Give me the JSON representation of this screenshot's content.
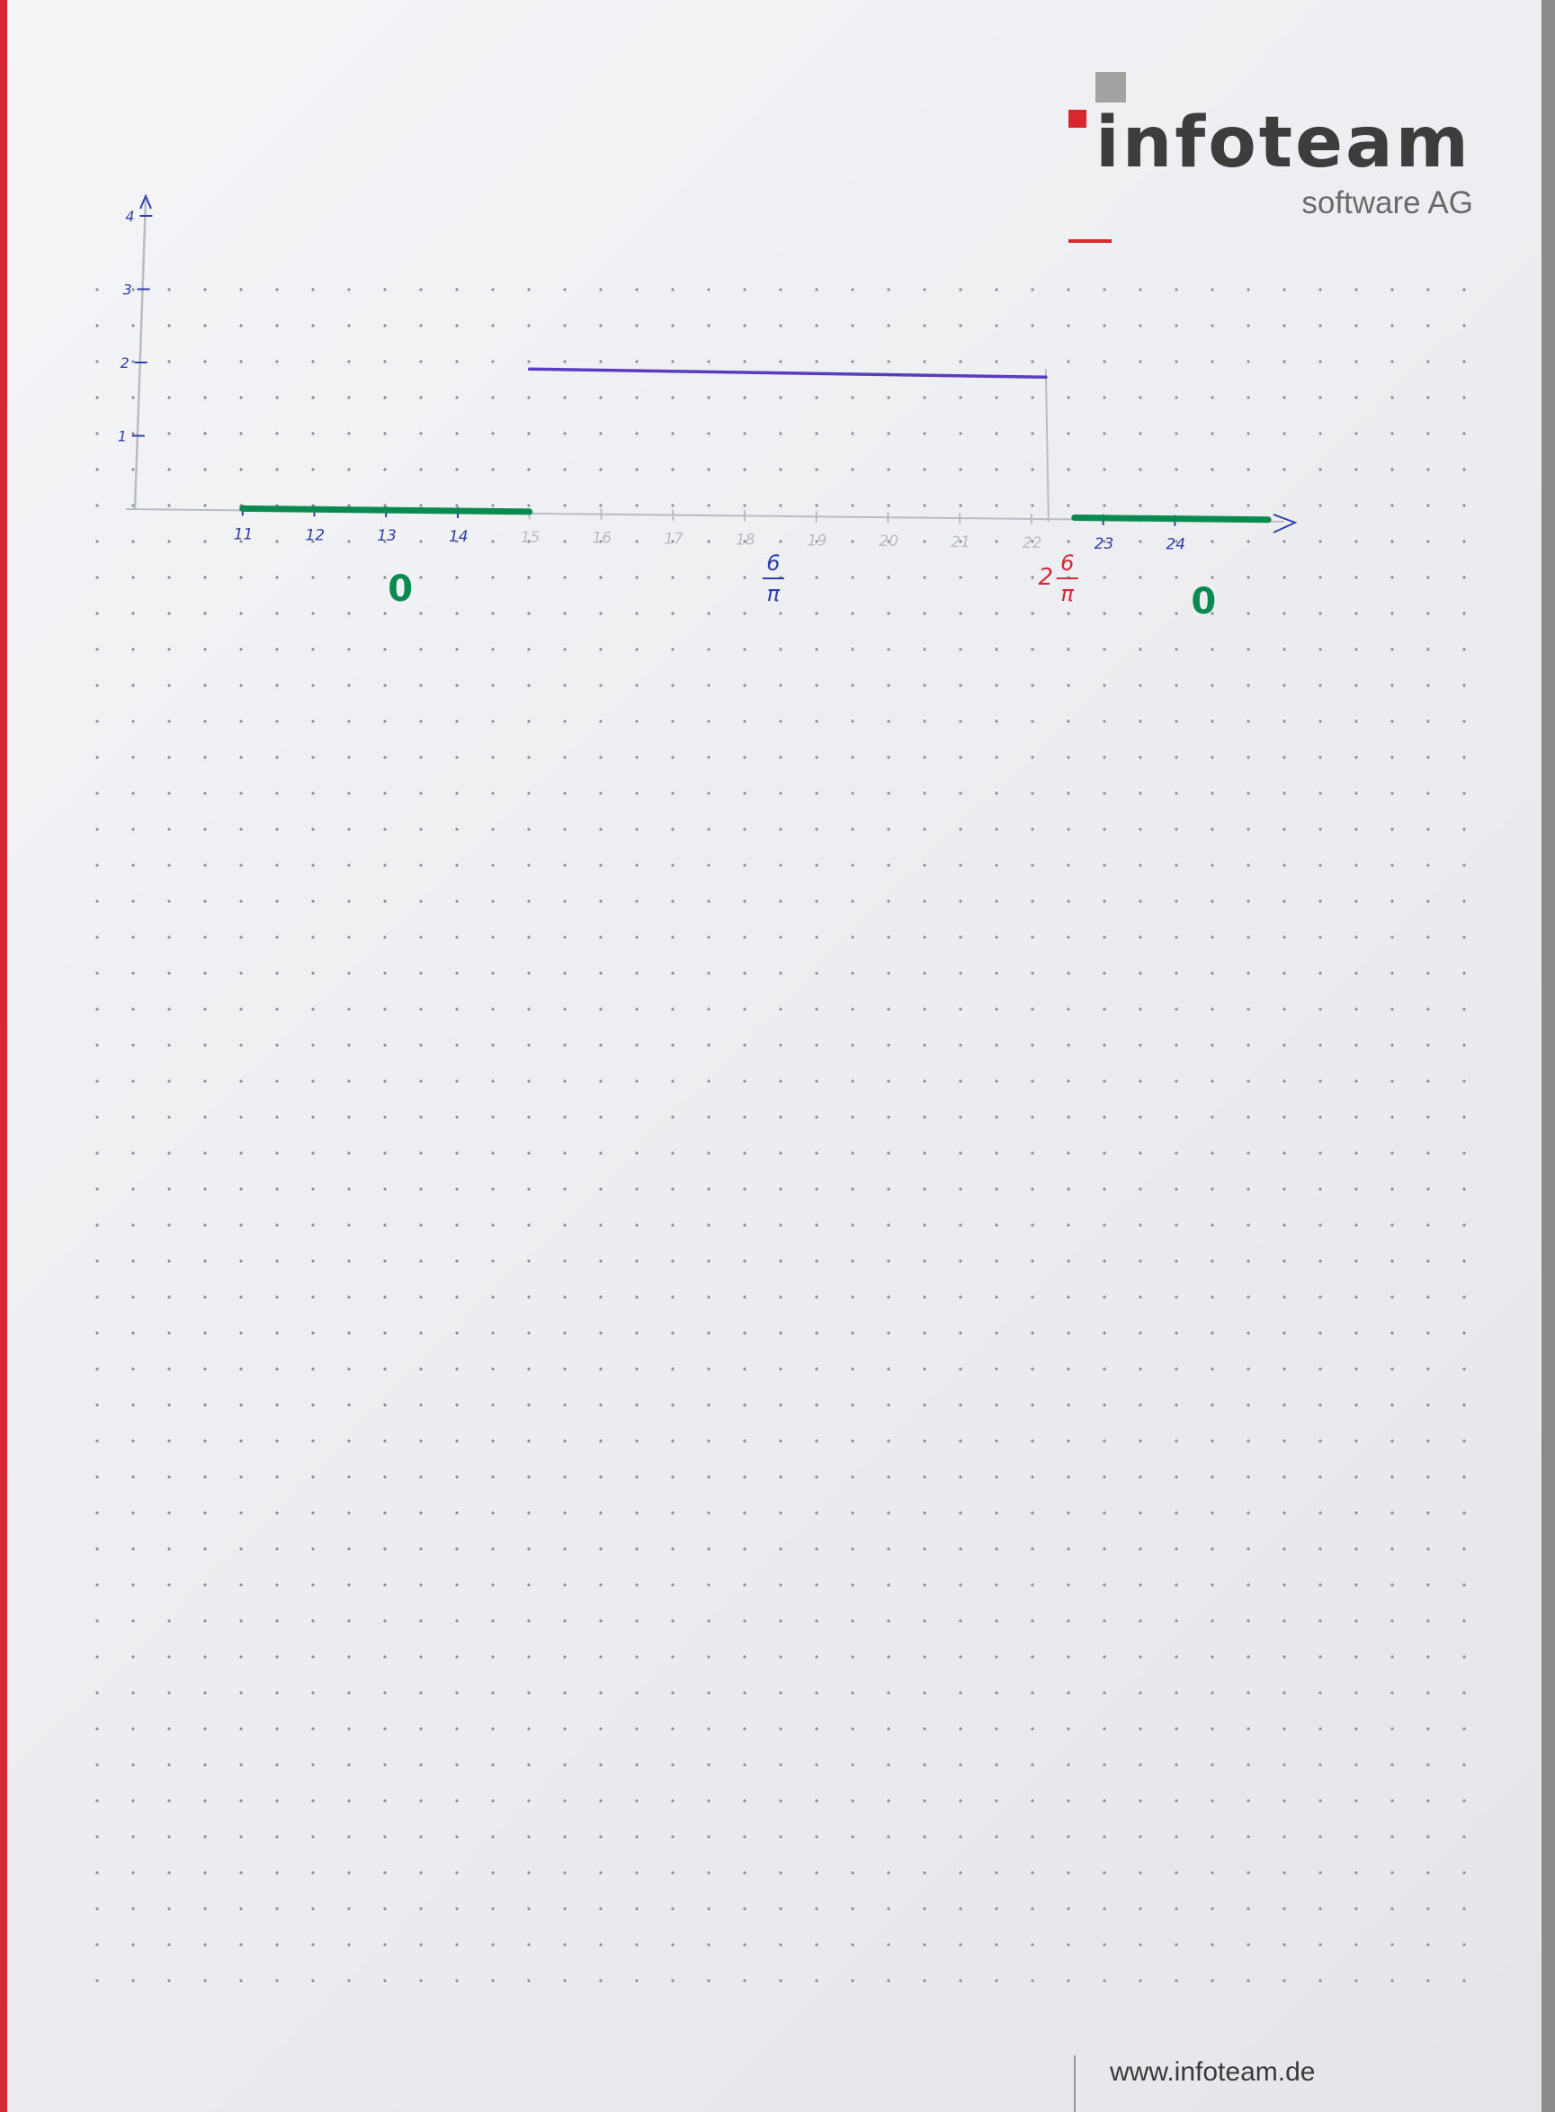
{
  "brand": {
    "wordmark": "infoteam",
    "tagline": "software AG",
    "website": "www.infoteam.de"
  },
  "colors": {
    "green": "#0a8a4f",
    "purple": "#5a3cbf",
    "blue_ink": "#2f3ea8",
    "red_ink": "#d22838",
    "pencil": "#b9bcc2"
  },
  "chart_data": {
    "type": "line",
    "title": "",
    "xlabel": "",
    "ylabel": "",
    "x_ticks": [
      "11",
      "12",
      "13",
      "14",
      "15",
      "16",
      "17",
      "18",
      "19",
      "20",
      "21",
      "22",
      "23",
      "24"
    ],
    "y_ticks": [
      "1",
      "2",
      "3",
      "4"
    ],
    "xlim": [
      10,
      25.5
    ],
    "ylim": [
      0,
      4
    ],
    "series": [
      {
        "color": "green",
        "x": [
          11,
          15
        ],
        "y": [
          0,
          0
        ]
      },
      {
        "color": "purple",
        "x": [
          15,
          22.2
        ],
        "y": [
          1.91,
          1.91
        ]
      },
      {
        "color": "green",
        "x": [
          22.6,
          25.3
        ],
        "y": [
          0,
          0
        ]
      }
    ],
    "annotations": [
      {
        "text": "0",
        "color": "green",
        "x": 13.2,
        "fraction": false
      },
      {
        "text": "6",
        "denominator": "π",
        "color": "blue_ink",
        "x": 18.4,
        "fraction": true
      },
      {
        "prefix": "2",
        "text": "6",
        "denominator": "π",
        "color": "red_ink",
        "x": 22.5,
        "fraction": true
      },
      {
        "text": "0",
        "color": "green",
        "x": 24.4,
        "fraction": false
      }
    ]
  }
}
